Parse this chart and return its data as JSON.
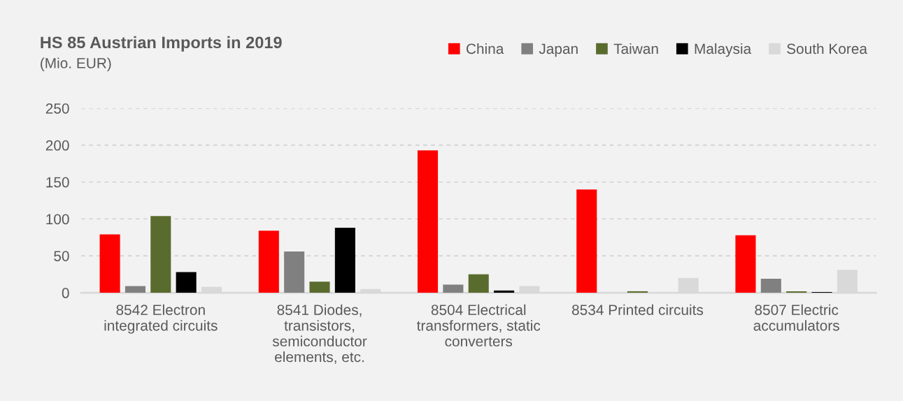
{
  "chart_data": {
    "type": "bar",
    "title": "HS 85 Austrian Imports in 2019",
    "subtitle": "(Mio. EUR)",
    "categories": [
      "8542 Electron integrated circuits",
      "8541 Diodes, transistors, semiconductor elements, etc.",
      "8504 Electrical transformers, static converters",
      "8534 Printed circuits",
      "8507 Electric accumulators"
    ],
    "series": [
      {
        "name": "China",
        "color": "#ff0000",
        "values": [
          79,
          84,
          193,
          140,
          78
        ]
      },
      {
        "name": "Japan",
        "color": "#808080",
        "values": [
          9,
          56,
          11,
          0,
          19
        ]
      },
      {
        "name": "Taiwan",
        "color": "#5a6b2e",
        "values": [
          104,
          15,
          25,
          2,
          2
        ]
      },
      {
        "name": "Malaysia",
        "color": "#000000",
        "values": [
          28,
          88,
          3,
          0,
          1
        ]
      },
      {
        "name": "South Korea",
        "color": "#d9d9d9",
        "values": [
          8,
          5,
          9,
          20,
          31
        ]
      }
    ],
    "ylim": [
      0,
      250
    ],
    "yticks": [
      0,
      50,
      100,
      150,
      200,
      250
    ],
    "grid": "y",
    "legend": "top right"
  }
}
